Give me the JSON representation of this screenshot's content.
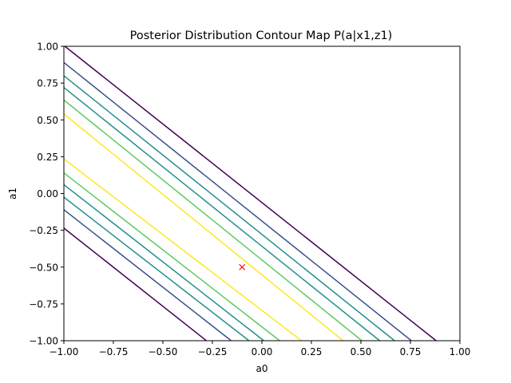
{
  "chart_data": {
    "type": "contour",
    "title": "Posterior Distribution Contour Map P(a|x1,z1)",
    "xlabel": "a0",
    "ylabel": "a1",
    "xlim": [
      -1.0,
      1.0
    ],
    "ylim": [
      -1.0,
      1.0
    ],
    "xticks": [
      -1.0,
      -0.75,
      -0.5,
      -0.25,
      0.0,
      0.25,
      0.5,
      0.75,
      1.0
    ],
    "yticks": [
      -1.0,
      -0.75,
      -0.5,
      -0.25,
      0.0,
      0.25,
      0.5,
      0.75,
      1.0
    ],
    "xtick_labels": [
      "−1.00",
      "−0.75",
      "−0.50",
      "−0.25",
      "0.00",
      "0.25",
      "0.50",
      "0.75",
      "1.00"
    ],
    "ytick_labels": [
      "−1.00",
      "−0.75",
      "−0.50",
      "−0.25",
      "0.00",
      "0.25",
      "0.50",
      "0.75",
      "1.00"
    ],
    "grid": false,
    "contour_lines": [
      {
        "points": [
          [
            -0.995,
            1.0
          ],
          [
            0.88,
            -1.0
          ]
        ],
        "color": "#440154"
      },
      {
        "points": [
          [
            -1.0,
            0.89
          ],
          [
            0.755,
            -1.0
          ]
        ],
        "color": "#3b528b"
      },
      {
        "points": [
          [
            -1.0,
            0.8
          ],
          [
            0.67,
            -1.0
          ]
        ],
        "color": "#21918c"
      },
      {
        "points": [
          [
            -1.0,
            0.72
          ],
          [
            0.595,
            -1.0
          ]
        ],
        "color": "#21918c"
      },
      {
        "points": [
          [
            -1.0,
            0.635
          ],
          [
            0.505,
            -1.0
          ]
        ],
        "color": "#5ec962"
      },
      {
        "points": [
          [
            -1.0,
            0.54
          ],
          [
            0.41,
            -1.0
          ]
        ],
        "color": "#fde725"
      },
      {
        "points": [
          [
            -1.0,
            0.235
          ],
          [
            0.2,
            -1.0
          ]
        ],
        "color": "#fde725"
      },
      {
        "points": [
          [
            -1.0,
            0.14
          ],
          [
            0.09,
            -1.0
          ]
        ],
        "color": "#5ec962"
      },
      {
        "points": [
          [
            -1.0,
            0.06
          ],
          [
            0.01,
            -1.0
          ]
        ],
        "color": "#21918c"
      },
      {
        "points": [
          [
            -1.0,
            -0.025
          ],
          [
            -0.065,
            -1.0
          ]
        ],
        "color": "#21918c"
      },
      {
        "points": [
          [
            -1.0,
            -0.11
          ],
          [
            -0.155,
            -1.0
          ]
        ],
        "color": "#3b528b"
      },
      {
        "points": [
          [
            -1.0,
            -0.235
          ],
          [
            -0.28,
            -1.0
          ]
        ],
        "color": "#440154"
      }
    ],
    "marker": {
      "x": -0.1,
      "y": -0.5,
      "symbol": "x",
      "color": "#ff0000"
    }
  }
}
